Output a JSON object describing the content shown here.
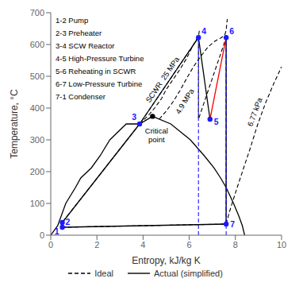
{
  "chart_data": {
    "type": "line",
    "x_label": "Entropy, kJ/kg K",
    "y_label": "Temperature, °C",
    "xlim": [
      0,
      10
    ],
    "ylim": [
      0,
      700
    ],
    "xticks": [
      0,
      2,
      4,
      6,
      8,
      10
    ],
    "yticks": [
      0,
      100,
      200,
      300,
      400,
      500,
      600,
      700
    ],
    "grid": false,
    "annotations": [
      "1-2 Pump",
      "2-3 Preheater",
      "3-4 SCW Reactor",
      "4-5 High-Pressure Turbine",
      "5-6 Reheating in SCWR",
      "6-7 Low-Pressure Turbine",
      "7-1 Condenser"
    ],
    "series": [
      {
        "x": [
          0.0,
          0.3,
          0.65,
          1.07,
          1.3,
          1.76,
          2.14,
          2.56,
          3.27,
          3.85,
          4.41
        ],
        "y": [
          0,
          30,
          100,
          150,
          180,
          212,
          250,
          300,
          350,
          350,
          374
        ],
        "color": "black",
        "line_style": "solid"
      },
      {
        "x": [
          4.41,
          5.2,
          6.05,
          6.65,
          7.07,
          7.36,
          7.6,
          7.92,
          8.15,
          8.3,
          8.4
        ],
        "y": [
          374,
          350,
          300,
          250,
          212,
          180,
          150,
          100,
          60,
          30,
          0
        ],
        "color": "black",
        "line_style": "solid"
      },
      {
        "label": "SCWR  25 MPa",
        "x": [
          3.85,
          3.9,
          4.1,
          4.3,
          4.5,
          4.8,
          5.0,
          5.3,
          5.6,
          5.9,
          6.1,
          6.3,
          6.4,
          6.42,
          6.45
        ],
        "y": [
          350,
          354,
          368,
          383,
          400,
          430,
          458,
          490,
          522,
          558,
          588,
          615,
          622,
          635,
          650
        ],
        "color": "black",
        "line_style": "dashed"
      },
      {
        "label": "4.9 MPa",
        "x": [
          4.7,
          5.0,
          5.3,
          5.6,
          5.9,
          6.2,
          6.5,
          6.8,
          7.1,
          7.4,
          7.55,
          7.6,
          7.62,
          7.65
        ],
        "y": [
          365,
          390,
          420,
          455,
          495,
          532,
          563,
          591,
          610,
          622,
          632,
          645,
          660,
          680
        ],
        "color": "black",
        "line_style": "dashed"
      },
      {
        "label": "6.77 kPa",
        "x": [
          7.6,
          7.75,
          7.9,
          8.1,
          8.35,
          8.65,
          8.95,
          9.3,
          9.65,
          10.0
        ],
        "y": [
          35,
          75,
          110,
          155,
          210,
          275,
          345,
          415,
          475,
          530
        ],
        "color": "black",
        "line_style": "dashed"
      },
      {
        "name": "Ideal",
        "x": [
          0.5,
          0.5,
          3.85,
          6.4,
          6.4,
          7.6,
          7.6,
          0.5
        ],
        "y": [
          25,
          40,
          350,
          622,
          365,
          622,
          35,
          25
        ],
        "color": "black",
        "line_style": "dashed"
      },
      {
        "name": "Actual (simplified)",
        "x": [
          0.5,
          0.5,
          3.85,
          6.4,
          6.9,
          7.6,
          7.6,
          0.5
        ],
        "y": [
          25,
          40,
          350,
          622,
          365,
          622,
          35,
          25
        ],
        "colors": [
          "black",
          "black",
          "black",
          "black",
          "red",
          "black",
          "black"
        ],
        "line_style": "solid"
      },
      {
        "x": [
          6.4,
          6.4
        ],
        "y": [
          0,
          622
        ],
        "color": "#1a1aff",
        "line_style": "dashed"
      },
      {
        "x": [
          7.6,
          7.6
        ],
        "y": [
          0,
          622
        ],
        "color": "#1a1aff",
        "line_style": "dashed"
      },
      {
        "type": "scatter",
        "labels": [
          "1",
          "2",
          "3",
          "4",
          "5",
          "6",
          "7"
        ],
        "x": [
          0.5,
          0.5,
          3.85,
          6.4,
          6.9,
          7.6,
          7.6
        ],
        "y": [
          25,
          40,
          350,
          622,
          365,
          622,
          35
        ],
        "color": "#1a1aff",
        "marker": "circle"
      },
      {
        "type": "scatter",
        "labels": [
          "Critical\npoint"
        ],
        "x": [
          4.41
        ],
        "y": [
          374
        ],
        "color": "black",
        "marker": "circle"
      }
    ]
  }
}
